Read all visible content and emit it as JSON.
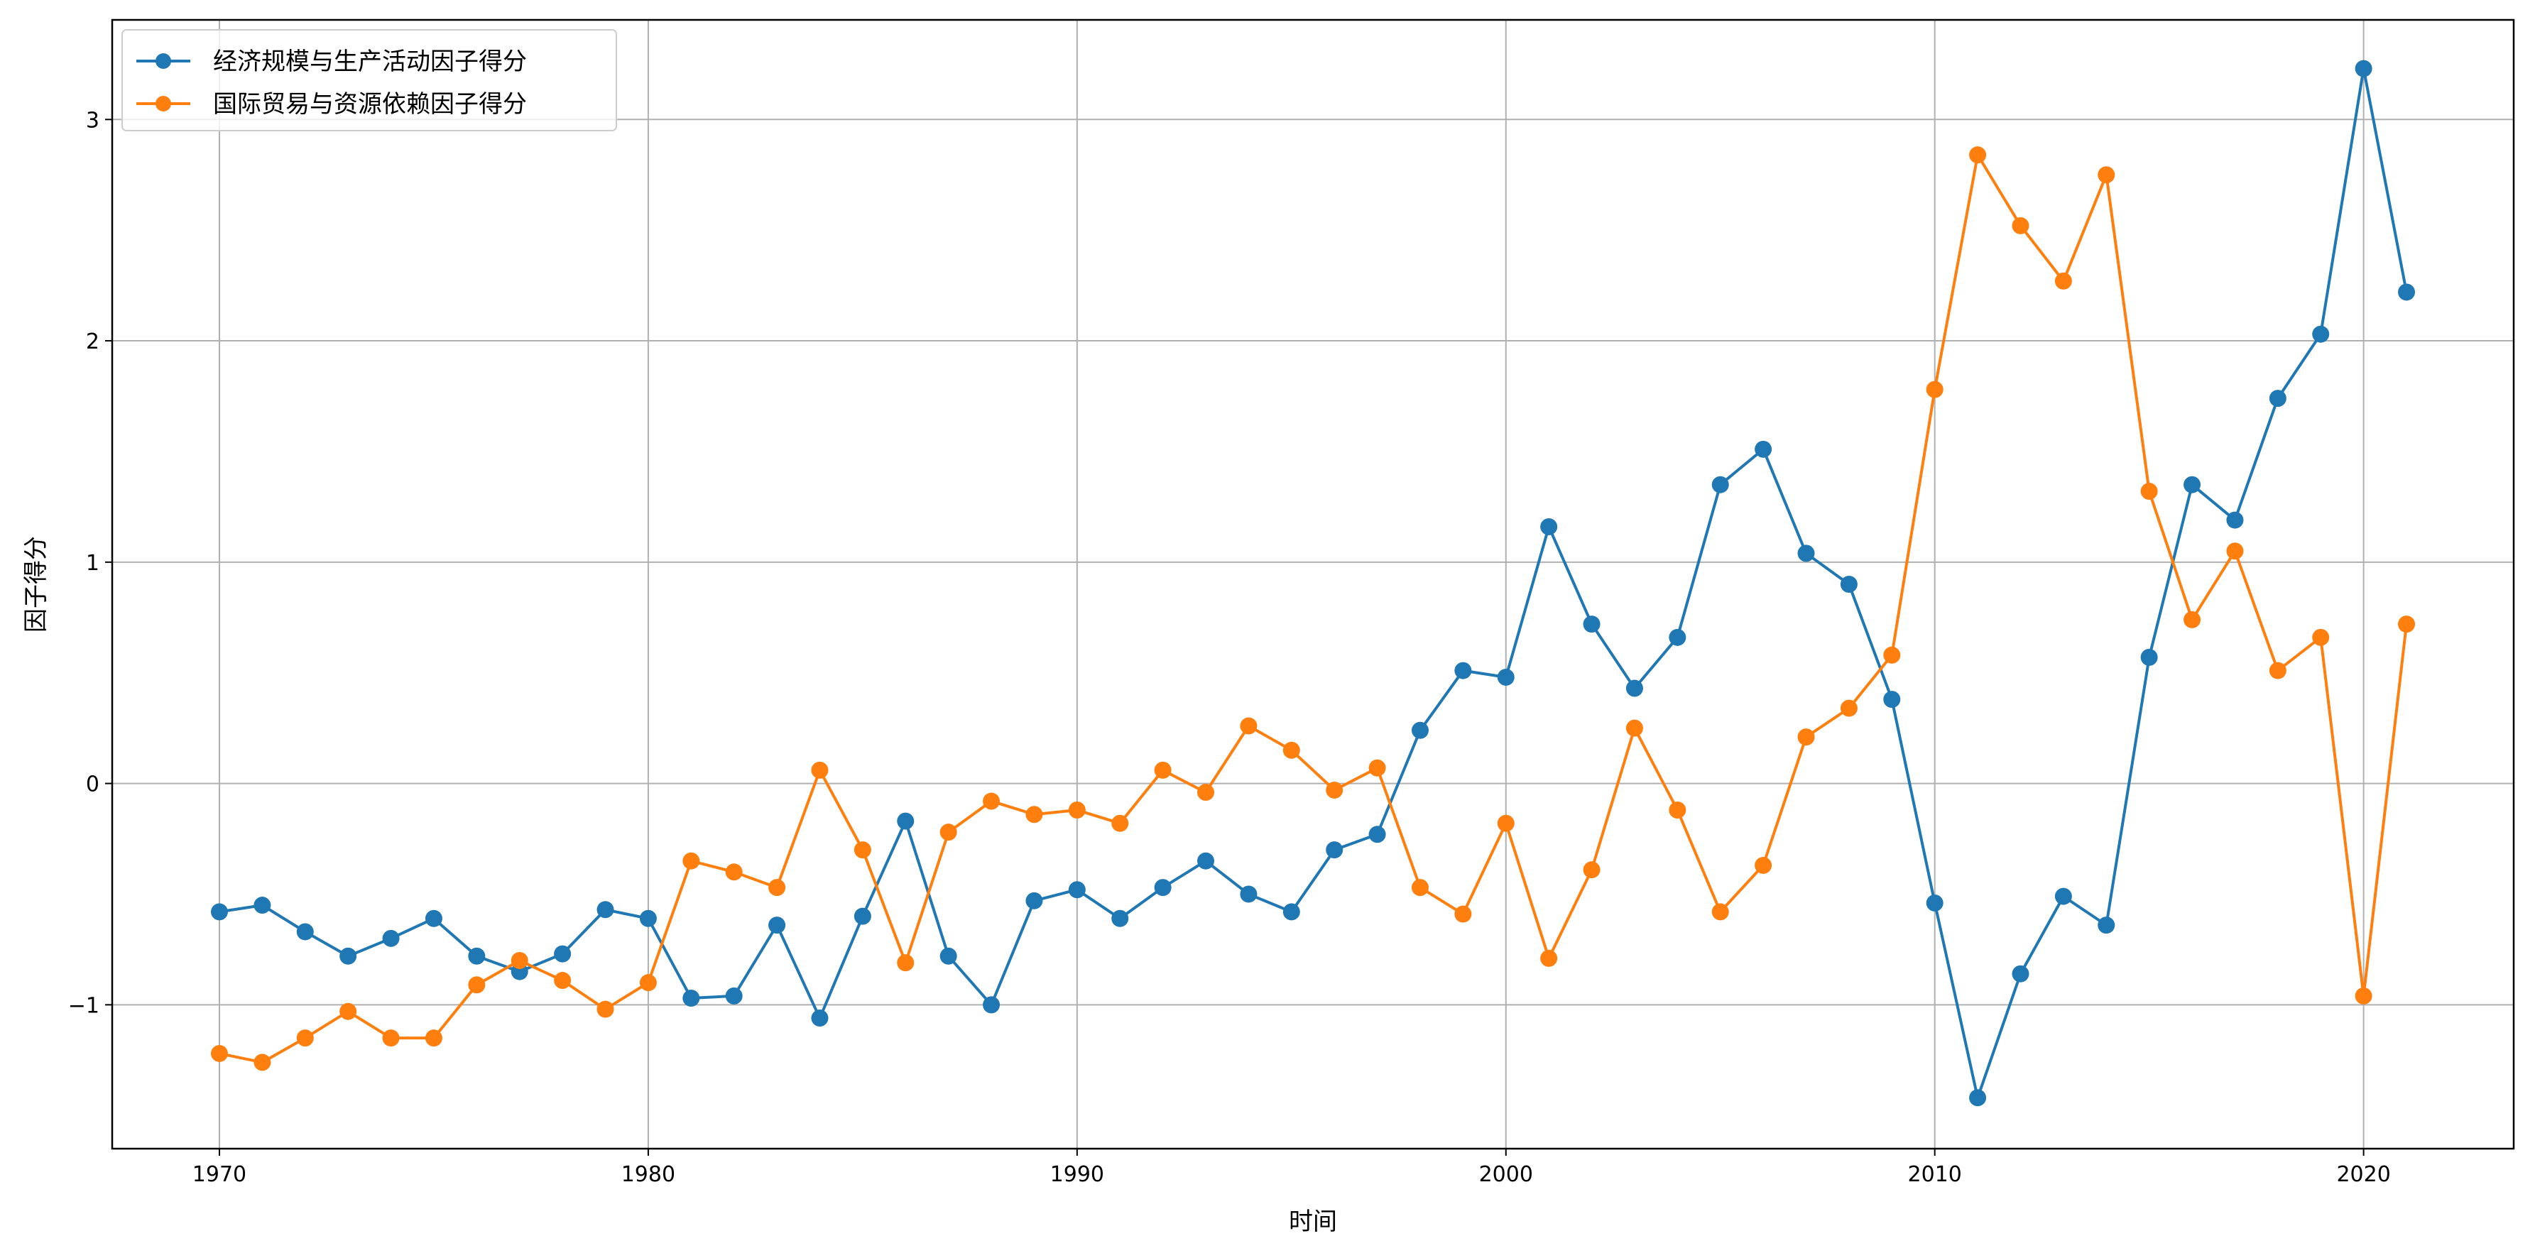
{
  "chart_data": {
    "type": "line",
    "title": "",
    "xlabel": "时间",
    "ylabel": "因子得分",
    "xlim": [
      1967.5,
      2023.5
    ],
    "ylim": [
      -1.65,
      3.45
    ],
    "xticks": [
      1970,
      1980,
      1990,
      2000,
      2010,
      2020
    ],
    "yticks": [
      -1,
      0,
      1,
      2,
      3
    ],
    "ytick_labels": [
      "−1",
      "0",
      "1",
      "2",
      "3"
    ],
    "grid": true,
    "legend_position": "top-left",
    "x": [
      1970,
      1971,
      1972,
      1973,
      1974,
      1975,
      1976,
      1977,
      1978,
      1979,
      1980,
      1981,
      1982,
      1983,
      1984,
      1985,
      1986,
      1987,
      1988,
      1989,
      1990,
      1991,
      1992,
      1993,
      1994,
      1995,
      1996,
      1997,
      1998,
      1999,
      2000,
      2001,
      2002,
      2003,
      2004,
      2005,
      2006,
      2007,
      2008,
      2009,
      2010,
      2011,
      2012,
      2013,
      2014,
      2015,
      2016,
      2017,
      2018,
      2019,
      2020,
      2021
    ],
    "series": [
      {
        "name": "经济规模与生产活动因子得分",
        "color": "#1f77b4",
        "values": [
          -0.58,
          -0.55,
          -0.67,
          -0.78,
          -0.7,
          -0.61,
          -0.78,
          -0.85,
          -0.77,
          -0.57,
          -0.61,
          -0.97,
          -0.96,
          -0.64,
          -1.06,
          -0.6,
          -0.17,
          -0.78,
          -1.0,
          -0.53,
          -0.48,
          -0.61,
          -0.47,
          -0.35,
          -0.5,
          -0.58,
          -0.3,
          -0.23,
          0.24,
          0.51,
          0.48,
          1.16,
          0.72,
          0.43,
          0.66,
          1.35,
          1.51,
          1.04,
          0.9,
          0.38,
          -0.54,
          -1.42,
          -0.86,
          -0.51,
          -0.64,
          0.57,
          1.35,
          1.19,
          1.74,
          2.03,
          3.23,
          2.22
        ]
      },
      {
        "name": "国际贸易与资源依赖因子得分",
        "color": "#ff7f0e",
        "values": [
          -1.22,
          -1.26,
          -1.15,
          -1.03,
          -1.15,
          -1.15,
          -0.91,
          -0.8,
          -0.89,
          -1.02,
          -0.9,
          -0.35,
          -0.4,
          -0.47,
          0.06,
          -0.3,
          -0.81,
          -0.22,
          -0.08,
          -0.14,
          -0.12,
          -0.18,
          0.06,
          -0.04,
          0.26,
          0.15,
          -0.03,
          0.07,
          -0.47,
          -0.59,
          -0.18,
          -0.79,
          -0.39,
          0.25,
          -0.12,
          -0.58,
          -0.37,
          0.21,
          0.34,
          0.58,
          1.78,
          2.84,
          2.52,
          2.27,
          2.75,
          1.32,
          0.74,
          1.05,
          0.51,
          0.66,
          -0.96,
          0.72
        ]
      }
    ]
  }
}
